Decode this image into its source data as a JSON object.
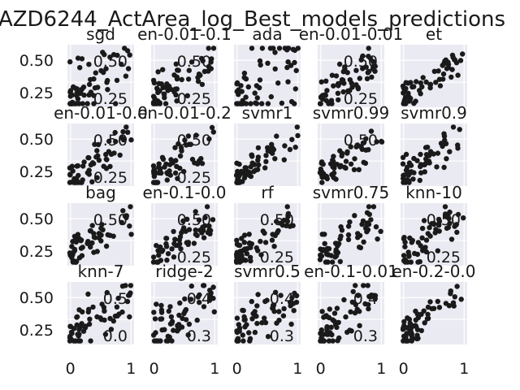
{
  "chart_data": {
    "type": "scatter",
    "title": "AZD6244_ActArea_log_Best_models_predictions",
    "xlabel": "",
    "ylabel": "",
    "grid": true,
    "rows": 4,
    "cols": 5,
    "x_ticks": [
      "0",
      "1"
    ],
    "xlim": [
      -0.05,
      1.05
    ],
    "background": "#eaeaf2",
    "point_color": "#1a1a1a",
    "row_y_ticks": [
      [
        "0.50",
        "0.25"
      ],
      [
        "0.50",
        "0.25"
      ],
      [
        "0.50",
        "0.25"
      ],
      [
        "0.50",
        "0.25"
      ]
    ],
    "panels": [
      {
        "title": "sgd",
        "y_ticks": [
          "0.50",
          "0.25"
        ],
        "spread": 0.28,
        "seed": 11
      },
      {
        "title": "en-0.01-0.1",
        "y_ticks": [
          "0.50",
          "0.25"
        ],
        "spread": 0.18,
        "seed": 12
      },
      {
        "title": "ada",
        "y_ticks": [],
        "spread": 0.35,
        "seed": 13
      },
      {
        "title": "en-0.01-0.01",
        "y_ticks": [
          "0.50",
          "0.25"
        ],
        "spread": 0.17,
        "seed": 14
      },
      {
        "title": "et",
        "y_ticks": [],
        "spread": 0.12,
        "seed": 15
      },
      {
        "title": "en-0.01-0.0",
        "y_ticks": [
          "0.50",
          "0.25"
        ],
        "spread": 0.16,
        "seed": 21
      },
      {
        "title": "en-0.01-0.2",
        "y_ticks": [
          "0.50",
          "0.25"
        ],
        "spread": 0.16,
        "seed": 22
      },
      {
        "title": "svmr1",
        "y_ticks": [],
        "spread": 0.14,
        "seed": 23
      },
      {
        "title": "svmr0.99",
        "y_ticks": [
          "0.50"
        ],
        "spread": 0.15,
        "seed": 24
      },
      {
        "title": "svmr0.9",
        "y_ticks": [],
        "spread": 0.14,
        "seed": 25
      },
      {
        "title": "bag",
        "y_ticks": [
          "0.50"
        ],
        "spread": 0.15,
        "seed": 31
      },
      {
        "title": "en-0.1-0.0",
        "y_ticks": [
          "0.50",
          "0.25"
        ],
        "spread": 0.16,
        "seed": 32
      },
      {
        "title": "rf",
        "y_ticks": [
          "0.50",
          "0.25"
        ],
        "spread": 0.15,
        "seed": 33
      },
      {
        "title": "svmr0.75",
        "y_ticks": [],
        "spread": 0.18,
        "seed": 34
      },
      {
        "title": "knn-10",
        "y_ticks": [
          "0.50",
          "0.25"
        ],
        "spread": 0.17,
        "seed": 35
      },
      {
        "title": "knn-7",
        "y_ticks": [
          "0.5",
          "0.0"
        ],
        "spread": 0.2,
        "seed": 41
      },
      {
        "title": "ridge-2",
        "y_ticks": [
          "0.4",
          "0.3"
        ],
        "spread": 0.2,
        "seed": 42
      },
      {
        "title": "svmr0.5",
        "y_ticks": [
          "0.4",
          "0.3"
        ],
        "spread": 0.18,
        "seed": 43
      },
      {
        "title": "en-0.1-0.01",
        "y_ticks": [
          "0.4",
          "0.3"
        ],
        "spread": 0.2,
        "seed": 44
      },
      {
        "title": "en-0.2-0.0",
        "y_ticks": [],
        "spread": 0.15,
        "seed": 45
      }
    ]
  }
}
